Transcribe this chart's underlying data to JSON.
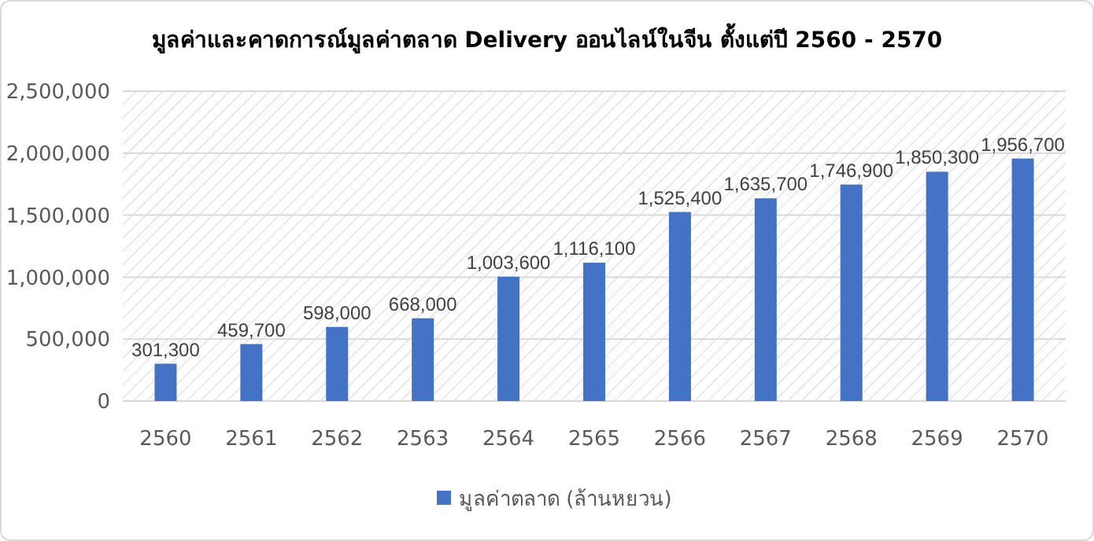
{
  "chart_data": {
    "type": "bar",
    "title": "มูลค่าและคาดการณ์มูลค่าตลาด Delivery ออนไลน์ในจีน ตั้งแต่ปี 2560 - 2570",
    "categories": [
      "2560",
      "2561",
      "2562",
      "2563",
      "2564",
      "2565",
      "2566",
      "2567",
      "2568",
      "2569",
      "2570"
    ],
    "series": [
      {
        "name": "มูลค่าตลาด (ล้านหยวน)",
        "color": "#4472c4",
        "values": [
          301300,
          459700,
          598000,
          668000,
          1003600,
          1116100,
          1525400,
          1635700,
          1746900,
          1850300,
          1956700
        ],
        "value_labels": [
          "301,300",
          "459,700",
          "598,000",
          "668,000",
          "1,003,600",
          "1,116,100",
          "1,525,400",
          "1,635,700",
          "1,746,900",
          "1,850,300",
          "1,956,700"
        ]
      }
    ],
    "ylim": [
      0,
      2500000
    ],
    "yticks": [
      {
        "value": 0,
        "label": "0"
      },
      {
        "value": 500000,
        "label": "500,000"
      },
      {
        "value": 1000000,
        "label": "1,000,000"
      },
      {
        "value": 1500000,
        "label": "1,500,000"
      },
      {
        "value": 2000000,
        "label": "2,000,000"
      },
      {
        "value": 2500000,
        "label": "2,500,000"
      }
    ],
    "grid": "y",
    "legend": "bottom"
  }
}
